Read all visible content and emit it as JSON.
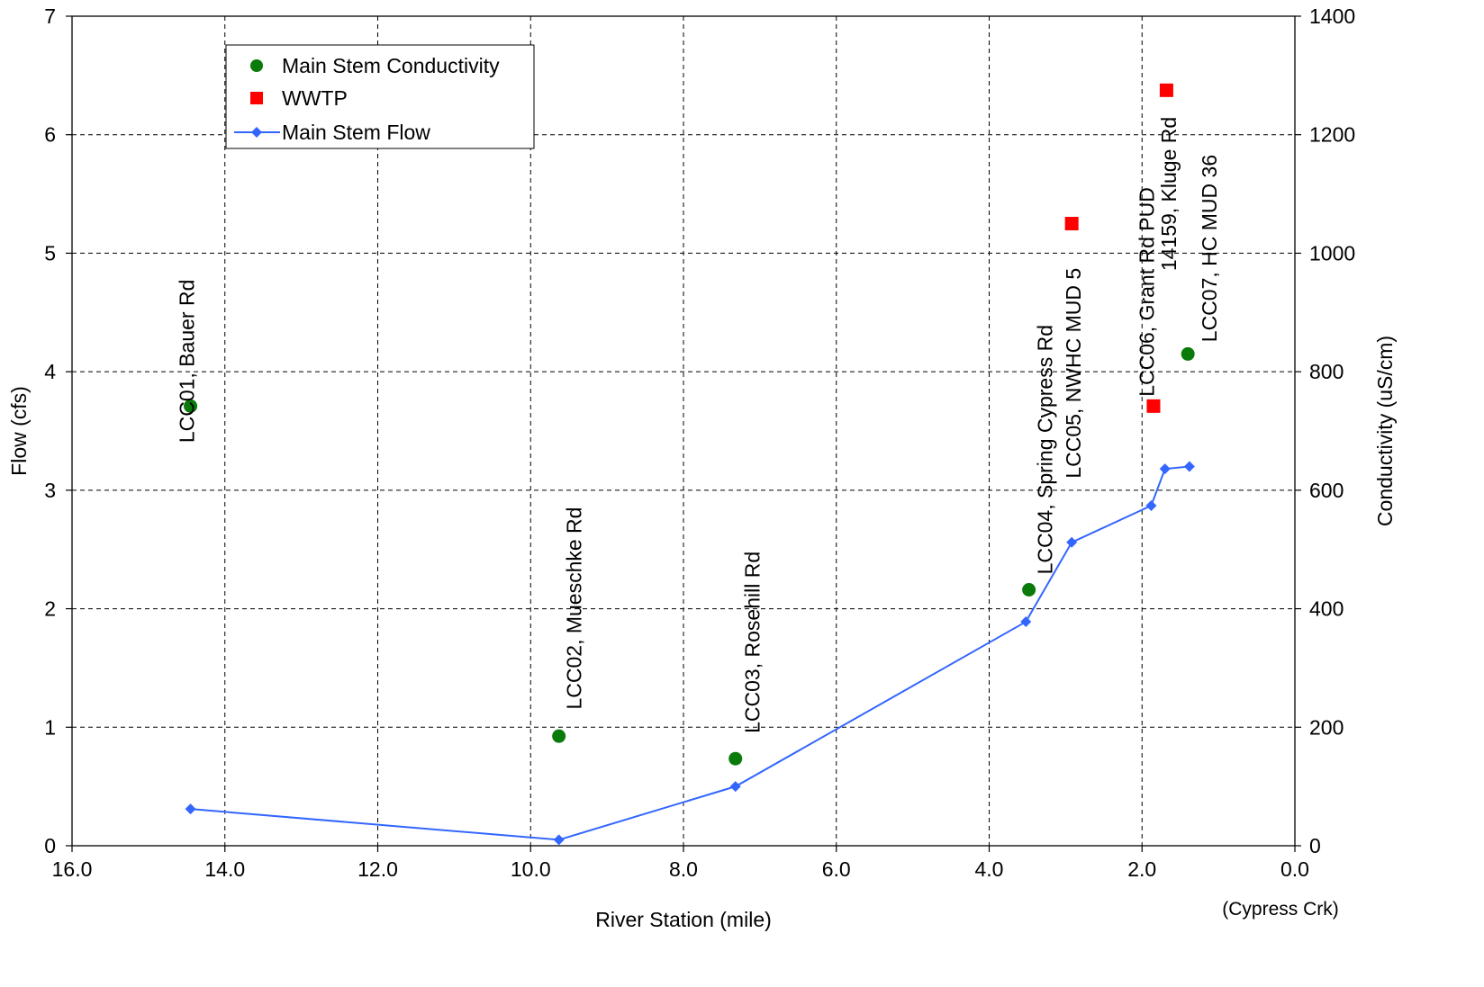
{
  "chart_data": {
    "type": "scatter",
    "xlabel": "River Station (mile)",
    "xlabel_note": "(Cypress Crk)",
    "ylabel_left": "Flow (cfs)",
    "ylabel_right": "Conductivity (uS/cm)",
    "xlim": [
      16,
      0
    ],
    "x_reversed": true,
    "ylim_left": [
      0,
      7
    ],
    "ylim_right": [
      0,
      1400
    ],
    "grid": true,
    "legend_position": "top-left",
    "x_ticks": [
      "16.0",
      "14.0",
      "12.0",
      "10.0",
      "8.0",
      "6.0",
      "4.0",
      "2.0",
      "0.0"
    ],
    "y_left_ticks": [
      "0",
      "1",
      "2",
      "3",
      "4",
      "5",
      "6",
      "7"
    ],
    "y_right_ticks": [
      "0",
      "200",
      "400",
      "600",
      "800",
      "1000",
      "1200",
      "1400"
    ],
    "series": [
      {
        "name": "Main Stem Conductivity",
        "axis": "right",
        "marker": "circle",
        "color": "#0a7a0a",
        "points": [
          {
            "x": 14.45,
            "y": 742
          },
          {
            "x": 9.63,
            "y": 185
          },
          {
            "x": 7.32,
            "y": 147
          },
          {
            "x": 3.48,
            "y": 432
          },
          {
            "x": 1.4,
            "y": 830
          }
        ]
      },
      {
        "name": "WWTP",
        "axis": "right",
        "marker": "square",
        "color": "#ff0000",
        "points": [
          {
            "x": 2.92,
            "y": 1050
          },
          {
            "x": 1.85,
            "y": 742
          },
          {
            "x": 1.68,
            "y": 1275
          }
        ]
      },
      {
        "name": "Main Stem Flow",
        "axis": "left",
        "marker": "diamond",
        "line": true,
        "color": "#3366ff",
        "points": [
          {
            "x": 14.45,
            "y": 0.31
          },
          {
            "x": 9.63,
            "y": 0.05
          },
          {
            "x": 7.32,
            "y": 0.5
          },
          {
            "x": 3.52,
            "y": 1.89
          },
          {
            "x": 2.92,
            "y": 2.56
          },
          {
            "x": 1.88,
            "y": 2.87
          },
          {
            "x": 1.7,
            "y": 3.18
          },
          {
            "x": 1.38,
            "y": 3.2
          }
        ]
      }
    ],
    "site_labels": [
      {
        "text": "LCC01, Bauer Rd",
        "x": 14.5,
        "y_right": 680
      },
      {
        "text": "LCC02, Mueschke Rd",
        "x": 9.43,
        "y_right": 230
      },
      {
        "text": "LCC03, Rosehill Rd",
        "x": 7.1,
        "y_right": 190
      },
      {
        "text": "LCC04, Spring Cypress Rd",
        "x": 3.27,
        "y_right": 458
      },
      {
        "text": "LCC05, NWHC MUD 5",
        "x": 2.9,
        "y_right": 620
      },
      {
        "text": "LCC06, Grant Rd PUD",
        "x": 1.94,
        "y_right": 758
      },
      {
        "text": "14159, Kluge Rd",
        "x": 1.65,
        "y_right": 970
      },
      {
        "text": "LCC07, HC MUD 36",
        "x": 1.12,
        "y_right": 850
      }
    ]
  }
}
